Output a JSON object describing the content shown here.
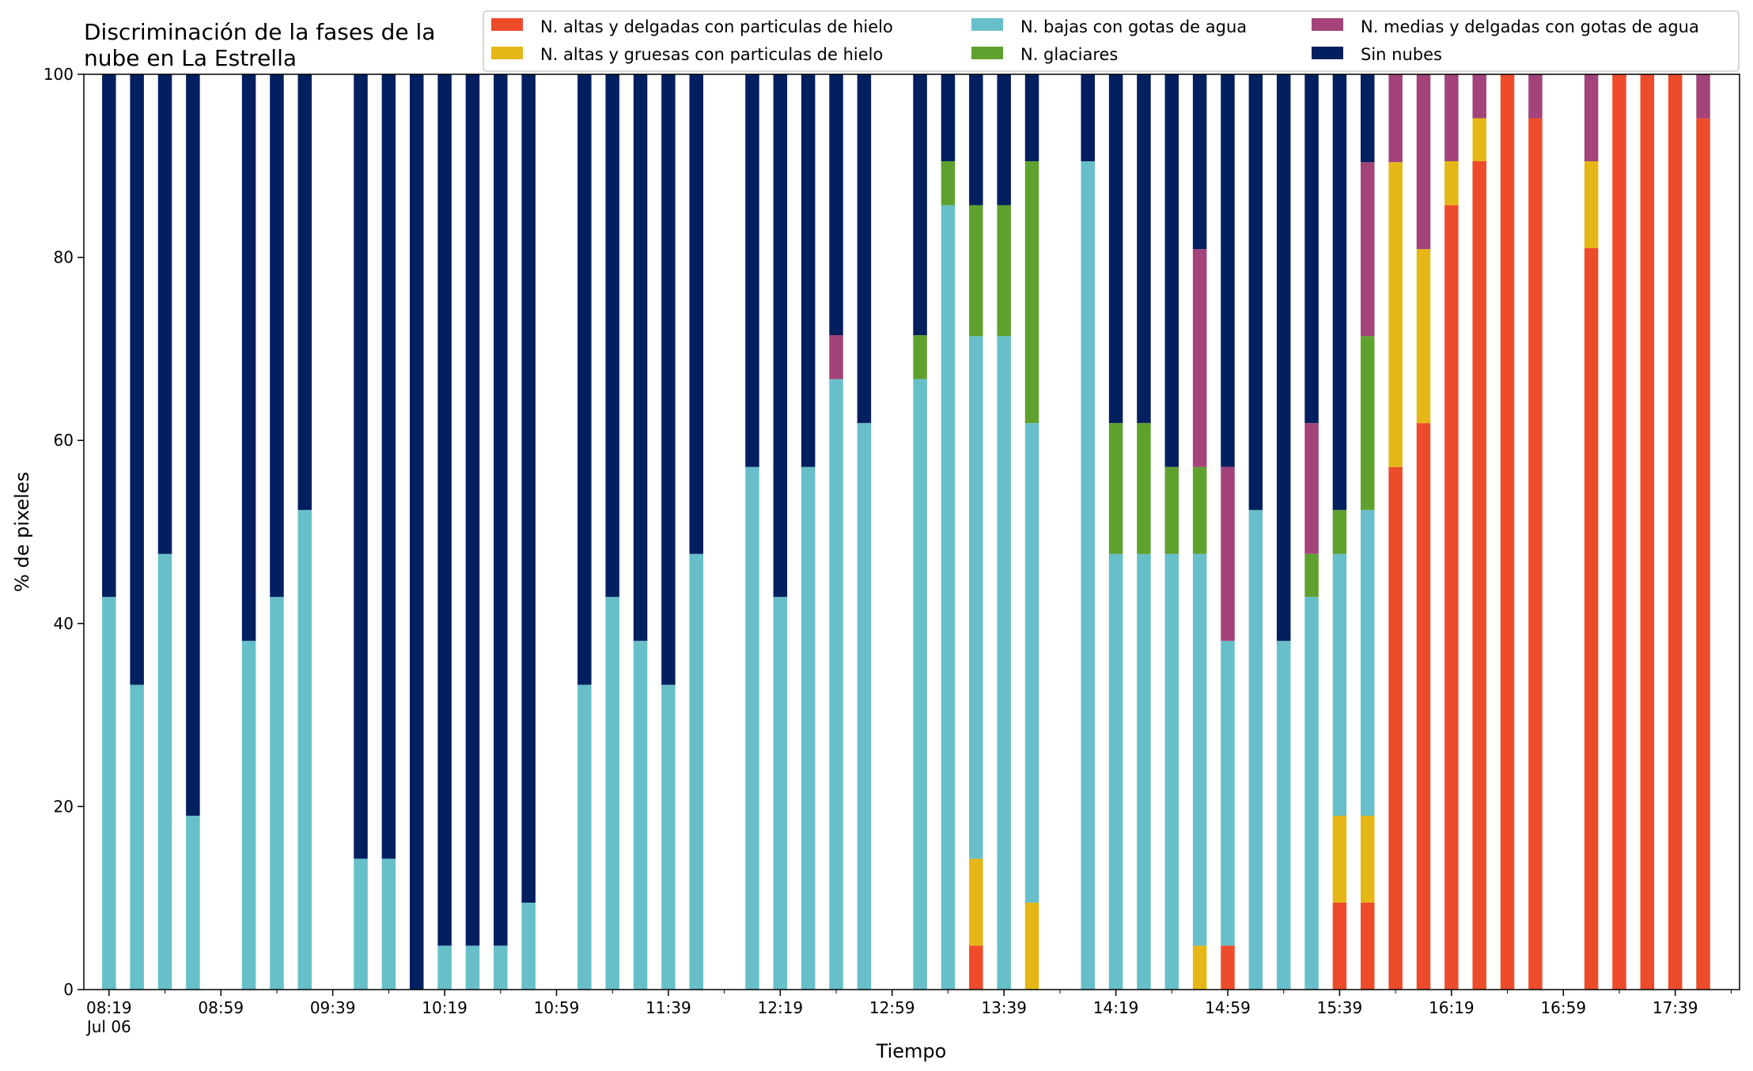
{
  "chart_data": {
    "type": "bar",
    "stacked": true,
    "title_lines": [
      "Discriminación de la fases de la",
      "nube en La Estrella"
    ],
    "xlabel": "Tiempo",
    "ylabel": "% de pixeles",
    "ylim": [
      0,
      100
    ],
    "yticks": [
      0,
      20,
      40,
      60,
      80,
      100
    ],
    "xlim_minutes": [
      490,
      1082
    ],
    "x_tick_labels": [
      {
        "minute": 499,
        "label": "08:19",
        "sub": "Jul 06"
      },
      {
        "minute": 539,
        "label": "08:59"
      },
      {
        "minute": 579,
        "label": "09:39"
      },
      {
        "minute": 619,
        "label": "10:19"
      },
      {
        "minute": 659,
        "label": "10:59"
      },
      {
        "minute": 699,
        "label": "11:39"
      },
      {
        "minute": 739,
        "label": "12:19"
      },
      {
        "minute": 779,
        "label": "12:59"
      },
      {
        "minute": 819,
        "label": "13:39"
      },
      {
        "minute": 859,
        "label": "14:19"
      },
      {
        "minute": 899,
        "label": "14:59"
      },
      {
        "minute": 939,
        "label": "15:39"
      },
      {
        "minute": 979,
        "label": "16:19"
      },
      {
        "minute": 1019,
        "label": "16:59"
      },
      {
        "minute": 1059,
        "label": "17:39"
      }
    ],
    "grid": false,
    "legend_position": "top",
    "legend_ncol": 3,
    "series": [
      {
        "key": "ice_thin",
        "name": "N. altas y delgadas con particulas de hielo",
        "color": "#ee4b2b"
      },
      {
        "key": "ice_thick",
        "name": "N. altas y gruesas con particulas de hielo",
        "color": "#e5b716"
      },
      {
        "key": "low",
        "name": "N. bajas con gotas de agua",
        "color": "#67bfca"
      },
      {
        "key": "glac",
        "name": "N. glaciares",
        "color": "#5fa12e"
      },
      {
        "key": "mid",
        "name": "N. medias y delgadas con gotas de agua",
        "color": "#a3437a"
      },
      {
        "key": "clear",
        "name": "Sin nubes",
        "color": "#021f5f"
      }
    ],
    "points": [
      {
        "time": "08:19",
        "ice_thin": 0,
        "ice_thick": 0,
        "low": 42.9,
        "glac": 0,
        "mid": 0,
        "clear": 57.1
      },
      {
        "time": "08:29",
        "ice_thin": 0,
        "ice_thick": 0,
        "low": 33.3,
        "glac": 0,
        "mid": 0,
        "clear": 66.7
      },
      {
        "time": "08:39",
        "ice_thin": 0,
        "ice_thick": 0,
        "low": 47.6,
        "glac": 0,
        "mid": 0,
        "clear": 52.4
      },
      {
        "time": "08:49",
        "ice_thin": 0,
        "ice_thick": 0,
        "low": 19.0,
        "glac": 0,
        "mid": 0,
        "clear": 81.0
      },
      {
        "time": "09:09",
        "ice_thin": 0,
        "ice_thick": 0,
        "low": 38.1,
        "glac": 0,
        "mid": 0,
        "clear": 61.9
      },
      {
        "time": "09:19",
        "ice_thin": 0,
        "ice_thick": 0,
        "low": 42.9,
        "glac": 0,
        "mid": 0,
        "clear": 57.1
      },
      {
        "time": "09:29",
        "ice_thin": 0,
        "ice_thick": 0,
        "low": 52.4,
        "glac": 0,
        "mid": 0,
        "clear": 47.6
      },
      {
        "time": "09:49",
        "ice_thin": 0,
        "ice_thick": 0,
        "low": 14.3,
        "glac": 0,
        "mid": 0,
        "clear": 85.7
      },
      {
        "time": "09:59",
        "ice_thin": 0,
        "ice_thick": 0,
        "low": 14.3,
        "glac": 0,
        "mid": 0,
        "clear": 85.7
      },
      {
        "time": "10:09",
        "ice_thin": 0,
        "ice_thick": 0,
        "low": 0,
        "glac": 0,
        "mid": 0,
        "clear": 100
      },
      {
        "time": "10:19",
        "ice_thin": 0,
        "ice_thick": 0,
        "low": 4.8,
        "glac": 0,
        "mid": 0,
        "clear": 95.2
      },
      {
        "time": "10:29",
        "ice_thin": 0,
        "ice_thick": 0,
        "low": 4.8,
        "glac": 0,
        "mid": 0,
        "clear": 95.2
      },
      {
        "time": "10:39",
        "ice_thin": 0,
        "ice_thick": 0,
        "low": 4.8,
        "glac": 0,
        "mid": 0,
        "clear": 95.2
      },
      {
        "time": "10:49",
        "ice_thin": 0,
        "ice_thick": 0,
        "low": 9.5,
        "glac": 0,
        "mid": 0,
        "clear": 90.5
      },
      {
        "time": "11:09",
        "ice_thin": 0,
        "ice_thick": 0,
        "low": 33.3,
        "glac": 0,
        "mid": 0,
        "clear": 66.7
      },
      {
        "time": "11:19",
        "ice_thin": 0,
        "ice_thick": 0,
        "low": 42.9,
        "glac": 0,
        "mid": 0,
        "clear": 57.1
      },
      {
        "time": "11:29",
        "ice_thin": 0,
        "ice_thick": 0,
        "low": 38.1,
        "glac": 0,
        "mid": 0,
        "clear": 61.9
      },
      {
        "time": "11:39",
        "ice_thin": 0,
        "ice_thick": 0,
        "low": 33.3,
        "glac": 0,
        "mid": 0,
        "clear": 66.7
      },
      {
        "time": "11:49",
        "ice_thin": 0,
        "ice_thick": 0,
        "low": 47.6,
        "glac": 0,
        "mid": 0,
        "clear": 52.4
      },
      {
        "time": "12:09",
        "ice_thin": 0,
        "ice_thick": 0,
        "low": 57.1,
        "glac": 0,
        "mid": 0,
        "clear": 42.9
      },
      {
        "time": "12:19",
        "ice_thin": 0,
        "ice_thick": 0,
        "low": 42.9,
        "glac": 0,
        "mid": 0,
        "clear": 57.1
      },
      {
        "time": "12:29",
        "ice_thin": 0,
        "ice_thick": 0,
        "low": 57.1,
        "glac": 0,
        "mid": 0,
        "clear": 42.9
      },
      {
        "time": "12:39",
        "ice_thin": 0,
        "ice_thick": 0,
        "low": 66.7,
        "glac": 0,
        "mid": 4.8,
        "clear": 28.5
      },
      {
        "time": "12:49",
        "ice_thin": 0,
        "ice_thick": 0,
        "low": 61.9,
        "glac": 0,
        "mid": 0,
        "clear": 38.1
      },
      {
        "time": "13:09",
        "ice_thin": 0,
        "ice_thick": 0,
        "low": 66.7,
        "glac": 4.8,
        "mid": 0,
        "clear": 28.5
      },
      {
        "time": "13:19",
        "ice_thin": 0,
        "ice_thick": 0,
        "low": 85.7,
        "glac": 4.8,
        "mid": 0,
        "clear": 9.5
      },
      {
        "time": "13:29",
        "ice_thin": 4.8,
        "ice_thick": 9.5,
        "low": 57.1,
        "glac": 14.3,
        "mid": 0,
        "clear": 14.3
      },
      {
        "time": "13:39",
        "ice_thin": 0,
        "ice_thick": 0,
        "low": 71.4,
        "glac": 14.3,
        "mid": 0,
        "clear": 14.3
      },
      {
        "time": "13:49",
        "ice_thin": 0,
        "ice_thick": 9.5,
        "low": 52.4,
        "glac": 28.6,
        "mid": 0,
        "clear": 9.5
      },
      {
        "time": "14:09",
        "ice_thin": 0,
        "ice_thick": 0,
        "low": 90.5,
        "glac": 0,
        "mid": 0,
        "clear": 9.5
      },
      {
        "time": "14:19",
        "ice_thin": 0,
        "ice_thick": 0,
        "low": 47.6,
        "glac": 14.3,
        "mid": 0,
        "clear": 38.1
      },
      {
        "time": "14:29",
        "ice_thin": 0,
        "ice_thick": 0,
        "low": 47.6,
        "glac": 14.3,
        "mid": 0,
        "clear": 38.1
      },
      {
        "time": "14:39",
        "ice_thin": 0,
        "ice_thick": 0,
        "low": 47.6,
        "glac": 9.5,
        "mid": 0,
        "clear": 42.9
      },
      {
        "time": "14:49",
        "ice_thin": 0,
        "ice_thick": 4.8,
        "low": 42.8,
        "glac": 9.5,
        "mid": 23.8,
        "clear": 19.1
      },
      {
        "time": "14:59",
        "ice_thin": 4.8,
        "ice_thick": 0,
        "low": 33.3,
        "glac": 0,
        "mid": 19.0,
        "clear": 42.9
      },
      {
        "time": "15:09",
        "ice_thin": 0,
        "ice_thick": 0,
        "low": 52.4,
        "glac": 0,
        "mid": 0,
        "clear": 47.6
      },
      {
        "time": "15:19",
        "ice_thin": 0,
        "ice_thick": 0,
        "low": 38.1,
        "glac": 0,
        "mid": 0,
        "clear": 61.9
      },
      {
        "time": "15:29",
        "ice_thin": 0,
        "ice_thick": 0,
        "low": 42.9,
        "glac": 4.7,
        "mid": 14.3,
        "clear": 38.1
      },
      {
        "time": "15:39",
        "ice_thin": 9.5,
        "ice_thick": 9.5,
        "low": 28.6,
        "glac": 4.8,
        "mid": 0,
        "clear": 47.6
      },
      {
        "time": "15:49",
        "ice_thin": 9.5,
        "ice_thick": 9.5,
        "low": 33.4,
        "glac": 19.0,
        "mid": 19.0,
        "clear": 9.6
      },
      {
        "time": "15:59",
        "ice_thin": 57.1,
        "ice_thick": 33.3,
        "low": 0,
        "glac": 0,
        "mid": 9.6,
        "clear": 0
      },
      {
        "time": "16:09",
        "ice_thin": 61.9,
        "ice_thick": 19.0,
        "low": 0,
        "glac": 0,
        "mid": 19.1,
        "clear": 0
      },
      {
        "time": "16:19",
        "ice_thin": 85.7,
        "ice_thick": 4.8,
        "low": 0,
        "glac": 0,
        "mid": 9.5,
        "clear": 0
      },
      {
        "time": "16:29",
        "ice_thin": 90.5,
        "ice_thick": 4.7,
        "low": 0,
        "glac": 0,
        "mid": 4.8,
        "clear": 0
      },
      {
        "time": "16:39",
        "ice_thin": 100,
        "ice_thick": 0,
        "low": 0,
        "glac": 0,
        "mid": 0,
        "clear": 0
      },
      {
        "time": "16:49",
        "ice_thin": 95.2,
        "ice_thick": 0,
        "low": 0,
        "glac": 0,
        "mid": 4.8,
        "clear": 0
      },
      {
        "time": "17:09",
        "ice_thin": 81.0,
        "ice_thick": 9.5,
        "low": 0,
        "glac": 0,
        "mid": 9.5,
        "clear": 0
      },
      {
        "time": "17:19",
        "ice_thin": 100,
        "ice_thick": 0,
        "low": 0,
        "glac": 0,
        "mid": 0,
        "clear": 0
      },
      {
        "time": "17:29",
        "ice_thin": 100,
        "ice_thick": 0,
        "low": 0,
        "glac": 0,
        "mid": 0,
        "clear": 0
      },
      {
        "time": "17:39",
        "ice_thin": 100,
        "ice_thick": 0,
        "low": 0,
        "glac": 0,
        "mid": 0,
        "clear": 0
      },
      {
        "time": "17:49",
        "ice_thin": 95.2,
        "ice_thick": 0,
        "low": 0,
        "glac": 0,
        "mid": 4.8,
        "clear": 0
      }
    ]
  }
}
